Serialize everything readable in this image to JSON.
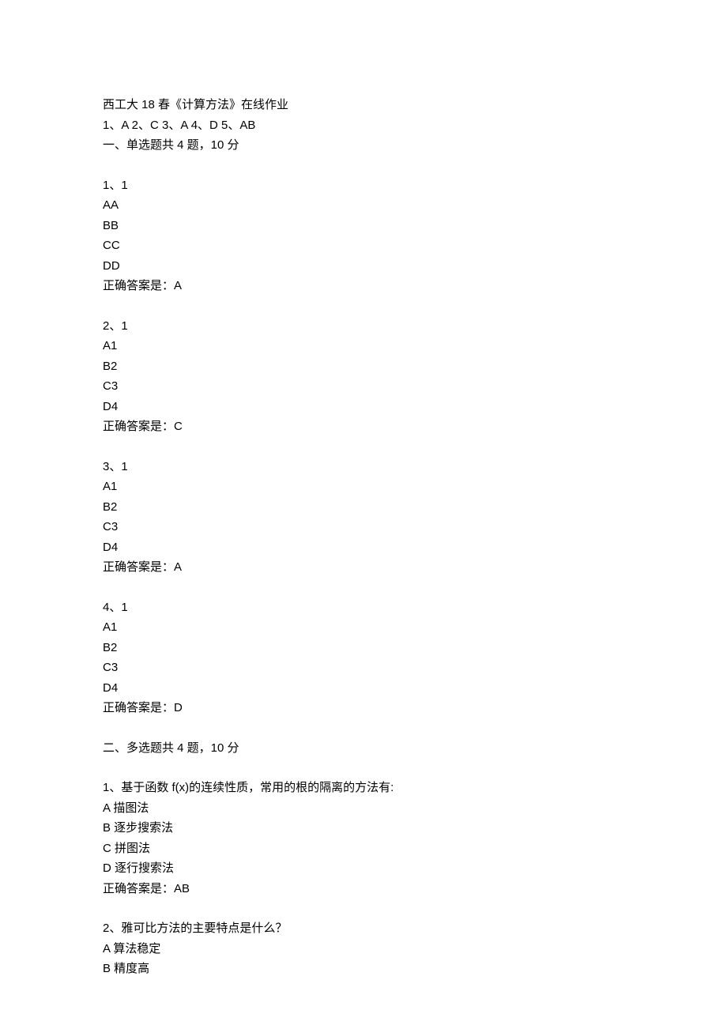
{
  "header": {
    "title": "西工大 18 春《计算方法》在线作业",
    "answer_key": "1、A 2、C 3、A 4、D 5、AB",
    "section1_title": "一、单选题共 4 题，10 分"
  },
  "singleChoice": [
    {
      "number": "1、1",
      "options": [
        "AA",
        "BB",
        "CC",
        "DD"
      ],
      "answer": "正确答案是：A"
    },
    {
      "number": "2、1",
      "options": [
        "A1",
        "B2",
        "C3",
        "D4"
      ],
      "answer": "正确答案是：C"
    },
    {
      "number": "3、1",
      "options": [
        "A1",
        "B2",
        "C3",
        "D4"
      ],
      "answer": "正确答案是：A"
    },
    {
      "number": "4、1",
      "options": [
        "A1",
        "B2",
        "C3",
        "D4"
      ],
      "answer": "正确答案是：D"
    }
  ],
  "section2_title": "二、多选题共 4 题，10 分",
  "multiChoice": [
    {
      "number": "1、基于函数 f(x)的连续性质，常用的根的隔离的方法有:",
      "options": [
        "A 描图法",
        "B 逐步搜索法",
        "C 拼图法",
        "D 逐行搜索法"
      ],
      "answer": "正确答案是：AB"
    },
    {
      "number": "2、雅可比方法的主要特点是什么？",
      "options": [
        "A 算法稳定",
        "B 精度高"
      ],
      "answer": ""
    }
  ]
}
